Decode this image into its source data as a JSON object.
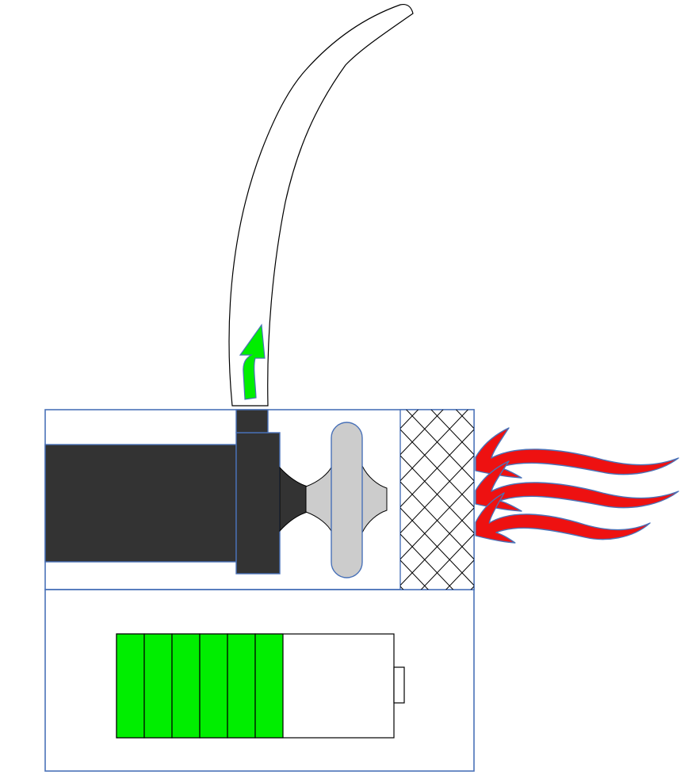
{
  "diagram": {
    "components": [
      {
        "id": "exhaust-hose",
        "icon": "curved-hose"
      },
      {
        "id": "outflow-arrow",
        "icon": "upward-arrow",
        "color": "#00EE00"
      },
      {
        "id": "motor",
        "icon": "motor-block",
        "color": "#333333"
      },
      {
        "id": "impeller",
        "icon": "fan-impeller",
        "color": "#CCCCCC"
      },
      {
        "id": "filter",
        "icon": "crosshatch-filter"
      },
      {
        "id": "intake-arrows",
        "icon": "wavy-arrow",
        "count": 3,
        "color": "#EE1111"
      },
      {
        "id": "battery",
        "icon": "battery",
        "charge_segments": 6,
        "charge_level": 0.6,
        "color": "#00EE00"
      }
    ],
    "colors": {
      "housing_stroke": "#4A72B8",
      "motor": "#333333",
      "impeller": "#CCCCCC",
      "battery_fill": "#00EE00",
      "intake_arrows": "#EE1111",
      "intake_arrow_outline": "#4A72B8",
      "outflow_arrow": "#00EE00"
    }
  }
}
